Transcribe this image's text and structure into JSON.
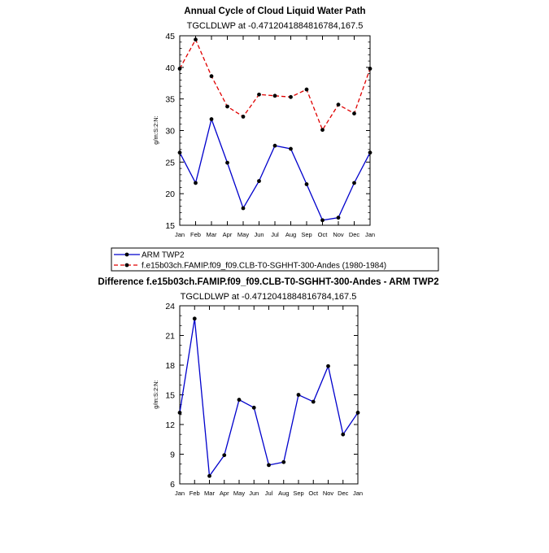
{
  "chart_data": [
    {
      "type": "line",
      "title": "Annual Cycle of Cloud Liquid Water Path",
      "subtitle": "TGCLDLWP at -0.4712041884816784,167.5",
      "ylabel": "g/m:S:2:N:",
      "ylim": [
        15,
        45
      ],
      "yticks": [
        "15",
        "20",
        "25",
        "30",
        "35",
        "40",
        "45"
      ],
      "categories": [
        "Jan",
        "Feb",
        "Mar",
        "Apr",
        "May",
        "Jun",
        "Jul",
        "Aug",
        "Sep",
        "Oct",
        "Nov",
        "Dec",
        "Jan"
      ],
      "legend": "below",
      "series": [
        {
          "name": "ARM TWP2",
          "color": "#0000cc",
          "dash": "solid",
          "values": [
            26.5,
            21.7,
            31.8,
            24.9,
            17.7,
            22.0,
            27.6,
            27.1,
            21.5,
            15.8,
            16.2,
            21.7,
            26.5
          ]
        },
        {
          "name": "f.e15b03ch.FAMIP.f09_f09.CLB-T0-SGHHT-300-Andes (1980-1984)",
          "color": "#e00000",
          "dash": "dashed",
          "values": [
            39.8,
            44.4,
            38.6,
            33.8,
            32.2,
            35.7,
            35.5,
            35.3,
            36.5,
            30.1,
            34.1,
            32.7,
            39.8
          ]
        }
      ]
    },
    {
      "type": "line",
      "title": "Difference f.e15b03ch.FAMIP.f09_f09.CLB-T0-SGHHT-300-Andes - ARM TWP2",
      "subtitle": "TGCLDLWP at -0.4712041884816784,167.5",
      "ylabel": "g/m:S:2:N:",
      "ylim": [
        6,
        24
      ],
      "yticks": [
        "6",
        "9",
        "12",
        "15",
        "18",
        "21",
        "24"
      ],
      "categories": [
        "Jan",
        "Feb",
        "Mar",
        "Apr",
        "May",
        "Jun",
        "Jul",
        "Aug",
        "Sep",
        "Oct",
        "Nov",
        "Dec",
        "Jan"
      ],
      "series": [
        {
          "name": "",
          "color": "#0000cc",
          "dash": "solid",
          "values": [
            13.2,
            22.7,
            6.8,
            8.9,
            14.5,
            13.7,
            7.9,
            8.2,
            15.0,
            14.3,
            17.9,
            11.0,
            13.2
          ]
        }
      ]
    }
  ]
}
